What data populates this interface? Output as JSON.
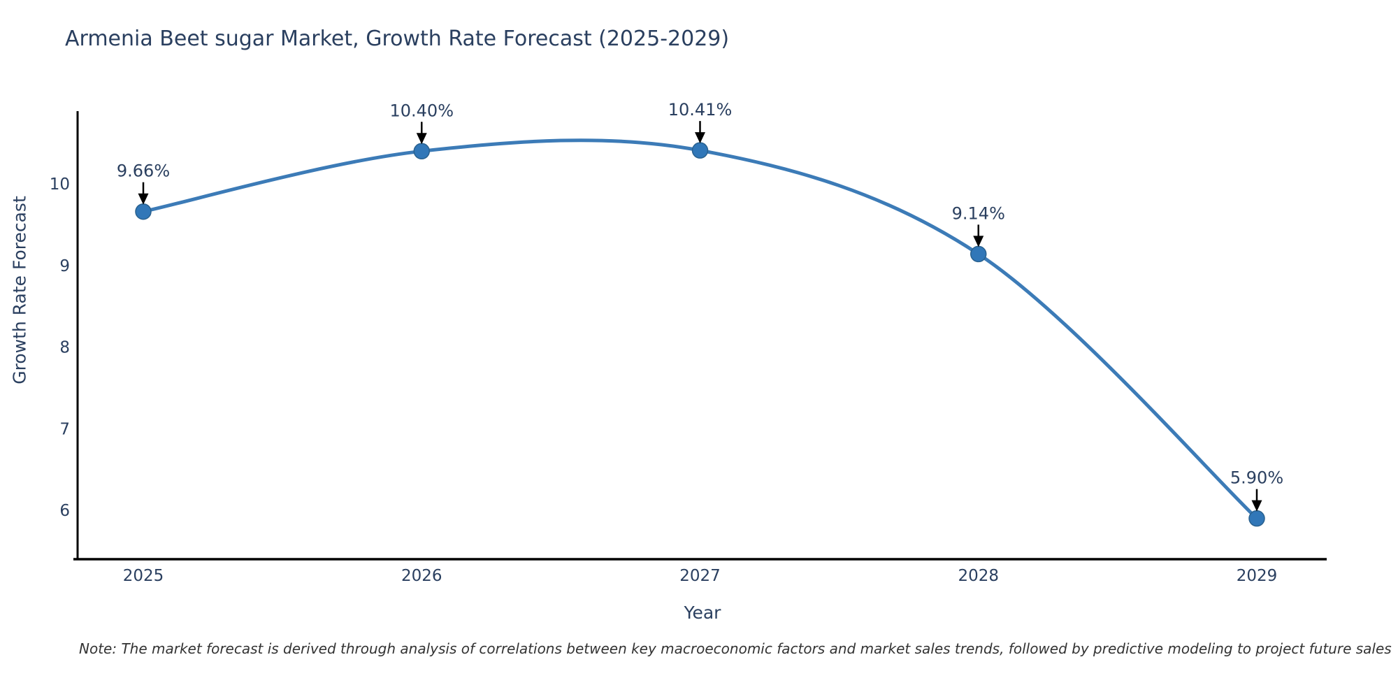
{
  "note": "Note: The market forecast is derived through analysis of correlations between key macroeconomic factors and market sales trends, followed by predictive modeling to project future sales",
  "chart_data": {
    "type": "line",
    "title": "Armenia Beet sugar Market, Growth Rate Forecast (2025-2029)",
    "xlabel": "Year",
    "ylabel": "Growth Rate Forecast",
    "x": [
      2025,
      2026,
      2027,
      2028,
      2029
    ],
    "values": [
      9.66,
      10.4,
      10.41,
      9.14,
      5.9
    ],
    "point_labels": [
      "9.66%",
      "10.40%",
      "10.41%",
      "9.14%",
      "5.90%"
    ],
    "yticks": [
      6,
      7,
      8,
      9,
      10
    ],
    "xticks": [
      "2025",
      "2026",
      "2027",
      "2028",
      "2029"
    ],
    "ylim": [
      5.4,
      11.0
    ],
    "grid": false,
    "legend": "none",
    "marker_style": "circle",
    "annotation_style": "label-with-down-arrow",
    "line_color": "#3c7bb7",
    "marker_fill_color": "#3177b8",
    "marker_edge_color": "#29618f",
    "axis_color": "#000000",
    "text_color": "#2a3f5f",
    "annotation_arrow_color": "#000000",
    "note_color": "#333333",
    "background_color": "#ffffff"
  }
}
